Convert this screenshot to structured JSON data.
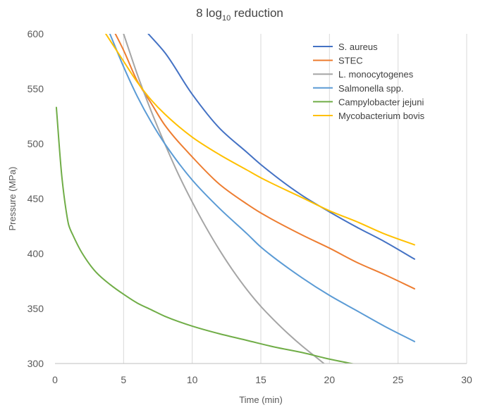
{
  "chart_data": {
    "type": "line",
    "title": "8 log10 reduction",
    "title_parts": {
      "prefix": "8 log",
      "subscript": "10",
      "suffix": " reduction"
    },
    "xlabel": "Time (min)",
    "ylabel": "Pressure (MPa)",
    "xlim": [
      0,
      30
    ],
    "ylim": [
      300,
      600
    ],
    "xticks": [
      0,
      5,
      10,
      15,
      20,
      25,
      30
    ],
    "yticks": [
      300,
      350,
      400,
      450,
      500,
      550,
      600
    ],
    "grid": "vertical",
    "legend_position": "top-right",
    "series": [
      {
        "name": "S. aureus",
        "color": "#4472C4",
        "points": [
          [
            6.8,
            600
          ],
          [
            8,
            583
          ],
          [
            10,
            545
          ],
          [
            12,
            514
          ],
          [
            14,
            492
          ],
          [
            15,
            481
          ],
          [
            18,
            453
          ],
          [
            20,
            438
          ],
          [
            22,
            424
          ],
          [
            24,
            411
          ],
          [
            26.2,
            395
          ]
        ]
      },
      {
        "name": "STEC",
        "color": "#ED7D31",
        "points": [
          [
            4.4,
            600
          ],
          [
            5,
            585
          ],
          [
            6,
            557
          ],
          [
            7,
            537
          ],
          [
            8,
            517
          ],
          [
            10,
            488
          ],
          [
            12,
            463
          ],
          [
            14,
            445
          ],
          [
            15,
            437
          ],
          [
            18,
            417
          ],
          [
            20,
            405
          ],
          [
            22,
            392
          ],
          [
            24,
            381
          ],
          [
            26.2,
            368
          ]
        ]
      },
      {
        "name": "L. monocytogenes",
        "color": "#A5A5A5",
        "points": [
          [
            5,
            600
          ],
          [
            6,
            563
          ],
          [
            7,
            530
          ],
          [
            8,
            500
          ],
          [
            9,
            472
          ],
          [
            10,
            447
          ],
          [
            11,
            424
          ],
          [
            12,
            403
          ],
          [
            13,
            384
          ],
          [
            14,
            367
          ],
          [
            15,
            352
          ],
          [
            16,
            339
          ],
          [
            17,
            327
          ],
          [
            18,
            316
          ],
          [
            19,
            306
          ],
          [
            19.6,
            300
          ]
        ]
      },
      {
        "name": "Salmonella spp.",
        "color": "#5B9BD5",
        "points": [
          [
            4,
            600
          ],
          [
            5,
            570
          ],
          [
            6,
            543
          ],
          [
            7,
            520
          ],
          [
            8,
            500
          ],
          [
            10,
            467
          ],
          [
            12,
            441
          ],
          [
            14,
            418
          ],
          [
            15,
            406
          ],
          [
            18,
            378
          ],
          [
            20,
            362
          ],
          [
            22,
            348
          ],
          [
            24,
            334
          ],
          [
            26.2,
            320
          ]
        ]
      },
      {
        "name": "Campylobacter jejuni",
        "color": "#70AD47",
        "points": [
          [
            0.1,
            533
          ],
          [
            0.5,
            470
          ],
          [
            0.8,
            440
          ],
          [
            1,
            426
          ],
          [
            1.3,
            417
          ],
          [
            2,
            400
          ],
          [
            3,
            383
          ],
          [
            4,
            372
          ],
          [
            5,
            363
          ],
          [
            6,
            355
          ],
          [
            7,
            349
          ],
          [
            8,
            343
          ],
          [
            10,
            334
          ],
          [
            12,
            327
          ],
          [
            14,
            321
          ],
          [
            16,
            315
          ],
          [
            18,
            310
          ],
          [
            20,
            304
          ],
          [
            22,
            299
          ]
        ]
      },
      {
        "name": "Mycobacterium bovis",
        "color": "#FFC000",
        "points": [
          [
            3.7,
            600
          ],
          [
            5,
            575
          ],
          [
            6,
            556
          ],
          [
            7,
            540
          ],
          [
            8,
            527
          ],
          [
            10,
            506
          ],
          [
            12,
            490
          ],
          [
            14,
            476
          ],
          [
            15,
            469
          ],
          [
            18,
            451
          ],
          [
            20,
            439
          ],
          [
            22,
            429
          ],
          [
            24,
            418
          ],
          [
            26.2,
            408
          ]
        ]
      }
    ]
  }
}
